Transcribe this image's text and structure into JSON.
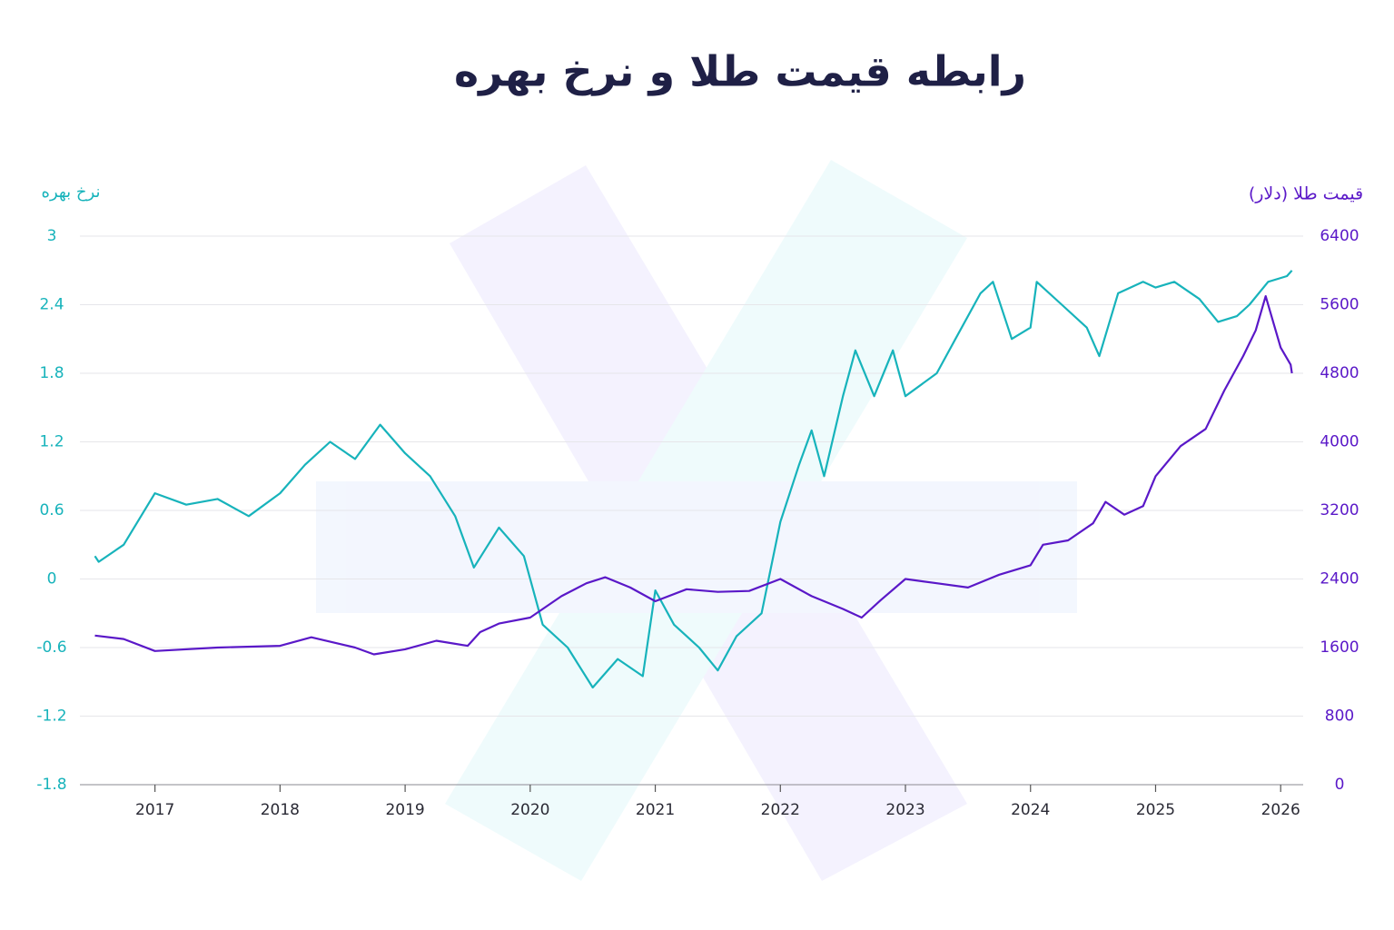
{
  "chart_data": {
    "type": "line",
    "title": "رابطه قیمت طلا و نرخ بهره",
    "y_label": "نرخ بهره",
    "y2_label": "قیمت طلا (دلار)",
    "xlim": [
      2016.4,
      2026.18
    ],
    "xticks": [
      2017,
      2018,
      2019,
      2020,
      2021,
      2022,
      2023,
      2024,
      2025,
      2026
    ],
    "ylim": [
      -1.8,
      3
    ],
    "yticks": [
      3,
      2.4,
      1.8,
      1.2,
      0.6,
      0,
      -0.6,
      -1.2,
      -1.8
    ],
    "y2lim": [
      0,
      6400
    ],
    "y2ticks": [
      6400,
      5600,
      4800,
      4000,
      3200,
      2400,
      1600,
      800,
      0
    ],
    "grid": true,
    "series": [
      {
        "name": "نرخ بهره",
        "color": "#17b3bb",
        "x": [
          2016.52,
          2016.55,
          2016.75,
          2017.0,
          2017.25,
          2017.5,
          2017.75,
          2018.0,
          2018.2,
          2018.4,
          2018.6,
          2018.8,
          2019.0,
          2019.2,
          2019.4,
          2019.55,
          2019.75,
          2019.95,
          2020.1,
          2020.3,
          2020.5,
          2020.7,
          2020.9,
          2021.0,
          2021.15,
          2021.35,
          2021.5,
          2021.65,
          2021.85,
          2022.0,
          2022.15,
          2022.25,
          2022.35,
          2022.5,
          2022.6,
          2022.75,
          2022.9,
          2023.0,
          2023.25,
          2023.4,
          2023.6,
          2023.7,
          2023.85,
          2024.0,
          2024.05,
          2024.25,
          2024.45,
          2024.55,
          2024.7,
          2024.9,
          2025.0,
          2025.15,
          2025.35,
          2025.5,
          2025.65,
          2025.75,
          2025.9,
          2026.05,
          2026.09
        ],
        "values": [
          0.2,
          0.15,
          0.3,
          0.75,
          0.65,
          0.7,
          0.55,
          0.75,
          1.0,
          1.2,
          1.05,
          1.35,
          1.1,
          0.9,
          0.55,
          0.1,
          0.45,
          0.2,
          -0.4,
          -0.6,
          -0.95,
          -0.7,
          -0.85,
          -0.1,
          -0.4,
          -0.6,
          -0.8,
          -0.5,
          -0.3,
          0.5,
          1.0,
          1.3,
          0.9,
          1.6,
          2.0,
          1.6,
          2.0,
          1.6,
          1.8,
          2.1,
          2.5,
          2.6,
          2.1,
          2.2,
          2.6,
          2.4,
          2.2,
          1.95,
          2.5,
          2.6,
          2.55,
          2.6,
          2.45,
          2.25,
          2.3,
          2.4,
          2.6,
          2.65,
          2.7
        ]
      },
      {
        "name": "قیمت طلا (دلار)",
        "color": "#5a18c8",
        "axis": "y2",
        "x": [
          2016.52,
          2016.75,
          2017.0,
          2017.5,
          2018.0,
          2018.25,
          2018.6,
          2018.75,
          2019.0,
          2019.25,
          2019.5,
          2019.6,
          2019.75,
          2020.0,
          2020.25,
          2020.45,
          2020.6,
          2020.8,
          2021.0,
          2021.25,
          2021.5,
          2021.75,
          2022.0,
          2022.25,
          2022.5,
          2022.65,
          2022.8,
          2023.0,
          2023.25,
          2023.5,
          2023.75,
          2024.0,
          2024.1,
          2024.3,
          2024.5,
          2024.6,
          2024.75,
          2024.9,
          2025.0,
          2025.2,
          2025.4,
          2025.55,
          2025.7,
          2025.8,
          2025.88,
          2025.95,
          2026.0,
          2026.08,
          2026.09
        ],
        "values": [
          1740,
          1700,
          1560,
          1600,
          1620,
          1720,
          1600,
          1520,
          1580,
          1680,
          1620,
          1780,
          1880,
          1950,
          2200,
          2350,
          2420,
          2300,
          2140,
          2280,
          2250,
          2260,
          2400,
          2200,
          2050,
          1950,
          2150,
          2400,
          2350,
          2300,
          2450,
          2560,
          2800,
          2850,
          3050,
          3300,
          3150,
          3250,
          3600,
          3950,
          4150,
          4600,
          5000,
          5300,
          5700,
          5350,
          5100,
          4900,
          4800
        ]
      }
    ]
  }
}
